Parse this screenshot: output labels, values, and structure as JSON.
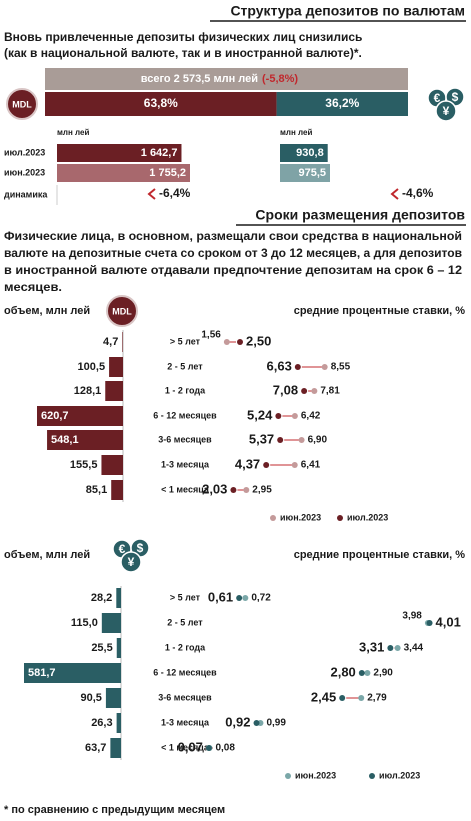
{
  "section1": {
    "title": "Структура депозитов по валютам",
    "subtitle_lines": [
      "Вновь привлеченные депозиты физических лиц снизились",
      "(как в национальной валюте, так и в иностранной валюте)*."
    ],
    "total_label": "всего 2 573,5 млн лей",
    "total_change_label": "(-5,8%)",
    "mdl_share": 63.8,
    "mdl_share_label": "63,8%",
    "fx_share": 36.2,
    "fx_share_label": "36,2%",
    "mdl_icon": "MDL",
    "fx_icon_symbols": [
      "€",
      "$",
      "¥"
    ],
    "unit_mdl": "млн лей",
    "unit_fx": "млн лей",
    "rows": [
      "июл.2023",
      "июн.2023"
    ],
    "dynamics_label": "динамика",
    "mdl_values": [
      1642.7,
      1755.2
    ],
    "mdl_value_labels": [
      "1 642,7",
      "1 755,2"
    ],
    "fx_values": [
      930.8,
      975.5
    ],
    "fx_value_labels": [
      "930,8",
      "975,5"
    ],
    "mdl_change": "-6,4%",
    "fx_change": "-4,6%"
  },
  "section2": {
    "title": "Сроки размещения депозитов",
    "text_lines": [
      "Физические лица, в основном, размещали свои средства в национальной",
      "валюте на депозитные счета со сроком от 3 до 12 месяцев, а для депозитов",
      "в иностранной валюте отдавали предпочтение депозитам на срок 6 – 12",
      "месяцев."
    ]
  },
  "mdl_chart": {
    "icon": "MDL",
    "volume_label": "объем, млн лей",
    "rate_label": "средние процентные ставки, %",
    "categories": [
      "> 5 лет",
      "2 - 5 лет",
      "1 - 2 года",
      "6 - 12 месяцев",
      "3-6 месяцев",
      "1-3 месяца",
      "< 1 месяца"
    ],
    "volumes": [
      4.7,
      100.5,
      128.1,
      620.7,
      548.1,
      155.5,
      85.1
    ],
    "volume_labels": [
      "4,7",
      "100,5",
      "128,1",
      "620,7",
      "548,1",
      "155,5",
      "85,1"
    ],
    "rates_jul": [
      2.5,
      6.63,
      7.08,
      5.24,
      5.37,
      4.37,
      2.03
    ],
    "rates_jul_labels": [
      "2,50",
      "6,63",
      "7,08",
      "5,24",
      "5,37",
      "4,37",
      "2,03"
    ],
    "rates_jun": [
      1.56,
      8.55,
      7.81,
      6.42,
      6.9,
      6.41,
      2.95
    ],
    "rates_jun_labels": [
      "1,56",
      "8,55",
      "7,81",
      "6,42",
      "6,90",
      "6,41",
      "2,95"
    ],
    "legend": [
      "июн.2023",
      "июл.2023"
    ]
  },
  "fx_chart": {
    "icon": [
      "€",
      "$",
      "¥"
    ],
    "volume_label": "объем, млн лей",
    "rate_label": "средние процентные ставки, %",
    "categories": [
      "> 5 лет",
      "2 - 5 лет",
      "1 - 2 года",
      "6 - 12 месяцев",
      "3-6 месяцев",
      "1-3 месяца",
      "< 1 месяца"
    ],
    "volumes": [
      28.2,
      115.0,
      25.5,
      581.7,
      90.5,
      26.3,
      63.7
    ],
    "volume_labels": [
      "28,2",
      "115,0",
      "25,5",
      "581,7",
      "90,5",
      "26,3",
      "63,7"
    ],
    "rates_jul": [
      0.61,
      4.01,
      3.31,
      2.8,
      2.45,
      0.92,
      0.07
    ],
    "rates_jul_labels": [
      "0,61",
      "4,01",
      "3,31",
      "2,80",
      "2,45",
      "0,92",
      "0,07"
    ],
    "rates_jun": [
      0.72,
      3.98,
      3.44,
      2.9,
      2.79,
      0.99,
      0.08
    ],
    "rates_jun_labels": [
      "0,72",
      "3,98",
      "3,44",
      "2,90",
      "2,79",
      "0,99",
      "0,08"
    ],
    "legend": [
      "июн.2023",
      "июл.2023"
    ]
  },
  "footnote": "* по сравнению с предыдущим месяцем"
}
